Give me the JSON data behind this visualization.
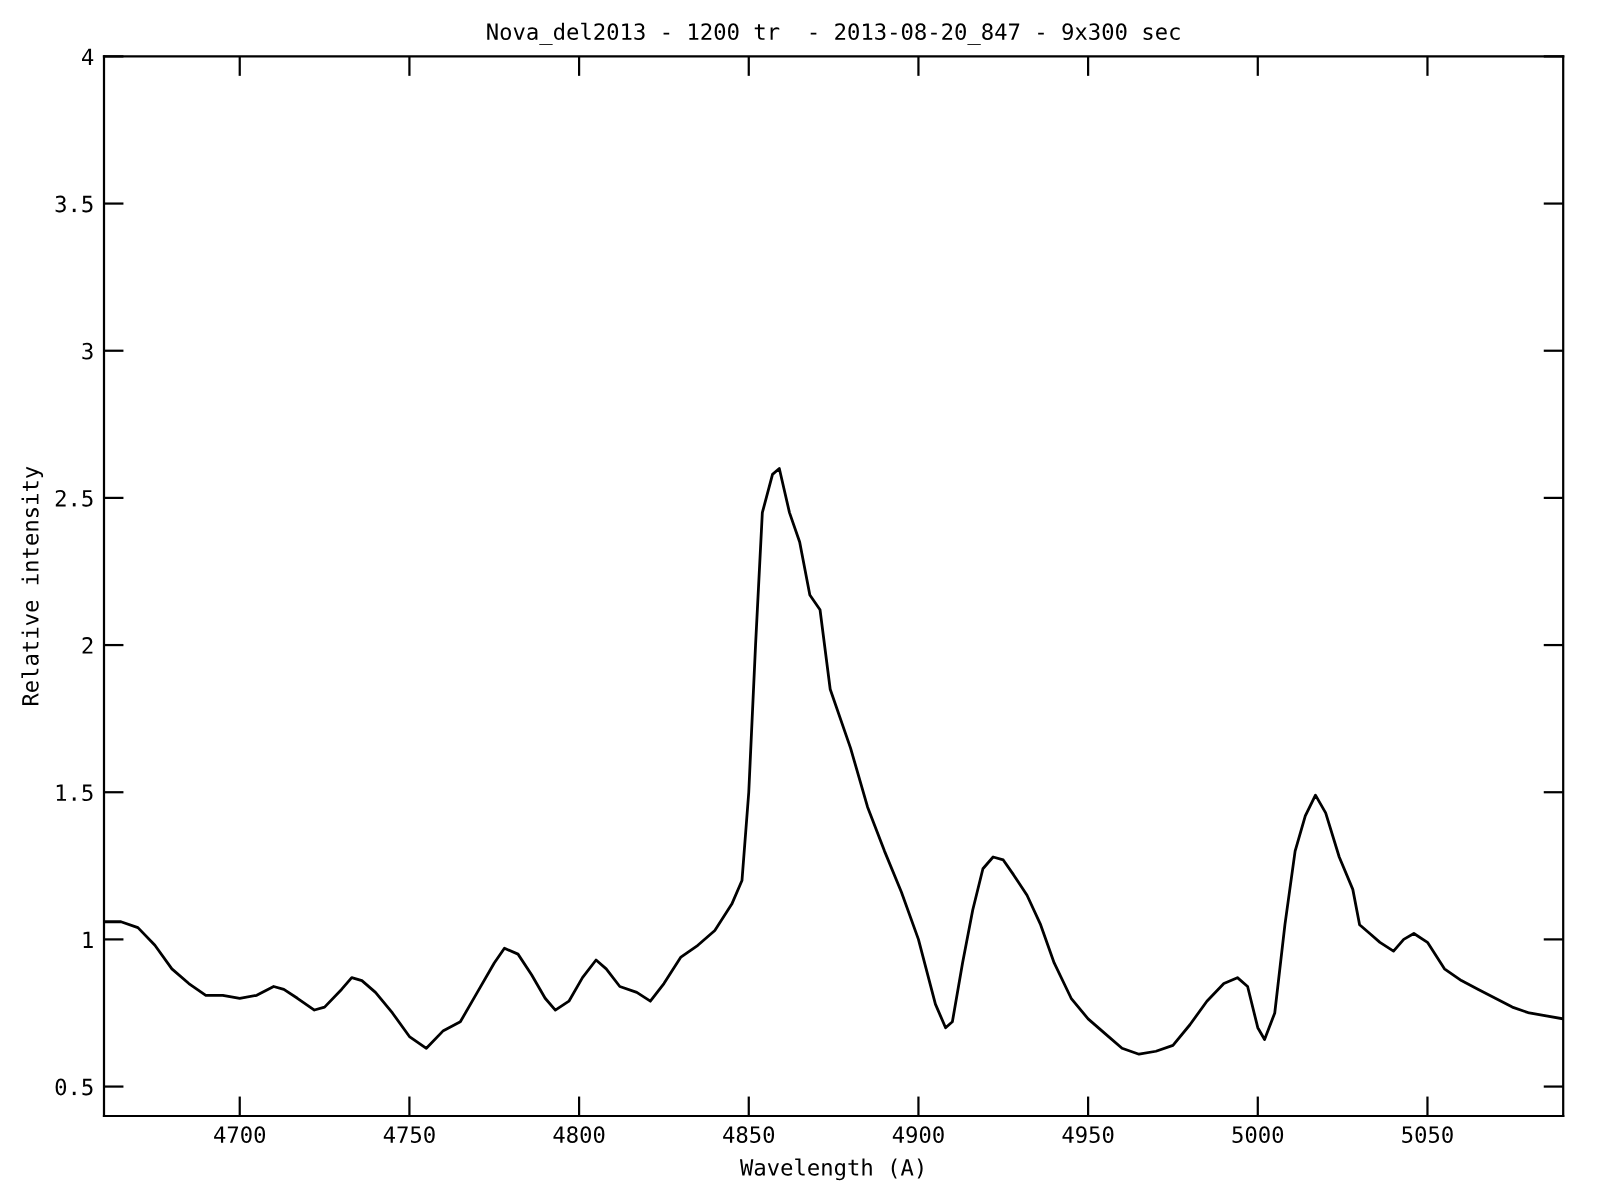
{
  "chart_data": {
    "type": "line",
    "title": "Nova_del2013 - 1200 tr  - 2013-08-20_847 - 9x300 sec",
    "xlabel": "Wavelength (A)",
    "ylabel": "Relative intensity",
    "xlim": [
      4660,
      5090
    ],
    "ylim": [
      0.4,
      4
    ],
    "xticks": [
      4700,
      4750,
      4800,
      4850,
      4900,
      4950,
      5000,
      5050
    ],
    "yticks": [
      0.5,
      1,
      1.5,
      2,
      2.5,
      3,
      3.5,
      4
    ],
    "grid": false,
    "series": [
      {
        "color": "#000000",
        "x": [
          4660,
          4665,
          4670,
          4675,
          4680,
          4685,
          4690,
          4695,
          4700,
          4705,
          4710,
          4713,
          4717,
          4722,
          4725,
          4730,
          4733,
          4736,
          4740,
          4745,
          4750,
          4755,
          4760,
          4765,
          4770,
          4775,
          4778,
          4782,
          4786,
          4790,
          4793,
          4797,
          4801,
          4805,
          4808,
          4812,
          4817,
          4821,
          4825,
          4830,
          4835,
          4840,
          4845,
          4848,
          4850,
          4852,
          4854,
          4857,
          4859,
          4862,
          4865,
          4868,
          4871,
          4874,
          4880,
          4885,
          4890,
          4895,
          4900,
          4905,
          4908,
          4910,
          4913,
          4916,
          4919,
          4922,
          4925,
          4928,
          4932,
          4936,
          4940,
          4945,
          4950,
          4955,
          4960,
          4965,
          4970,
          4975,
          4980,
          4985,
          4990,
          4994,
          4997,
          5000,
          5002,
          5005,
          5008,
          5011,
          5014,
          5017,
          5020,
          5024,
          5028,
          5030,
          5033,
          5036,
          5040,
          5043,
          5046,
          5050,
          5055,
          5060,
          5065,
          5070,
          5075,
          5080,
          5085,
          5090
        ],
        "values": [
          1.06,
          1.06,
          1.04,
          0.98,
          0.9,
          0.85,
          0.81,
          0.81,
          0.8,
          0.81,
          0.84,
          0.83,
          0.8,
          0.76,
          0.77,
          0.83,
          0.87,
          0.86,
          0.82,
          0.75,
          0.67,
          0.63,
          0.69,
          0.72,
          0.82,
          0.92,
          0.97,
          0.95,
          0.88,
          0.8,
          0.76,
          0.79,
          0.87,
          0.93,
          0.9,
          0.84,
          0.82,
          0.79,
          0.85,
          0.94,
          0.98,
          1.03,
          1.12,
          1.2,
          1.5,
          2.0,
          2.45,
          2.58,
          2.6,
          2.45,
          2.35,
          2.17,
          2.12,
          1.85,
          1.65,
          1.45,
          1.3,
          1.16,
          1.0,
          0.78,
          0.7,
          0.72,
          0.92,
          1.1,
          1.24,
          1.28,
          1.27,
          1.22,
          1.15,
          1.05,
          0.92,
          0.8,
          0.73,
          0.68,
          0.63,
          0.61,
          0.62,
          0.64,
          0.71,
          0.79,
          0.85,
          0.87,
          0.84,
          0.7,
          0.66,
          0.75,
          1.05,
          1.3,
          1.42,
          1.49,
          1.43,
          1.28,
          1.17,
          1.05,
          1.02,
          0.99,
          0.96,
          1.0,
          1.02,
          0.99,
          0.9,
          0.86,
          0.83,
          0.8,
          0.77,
          0.75,
          0.74,
          0.73
        ]
      }
    ]
  }
}
